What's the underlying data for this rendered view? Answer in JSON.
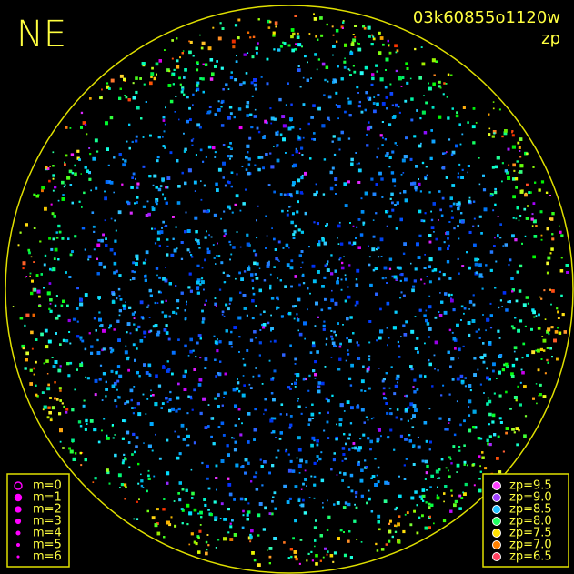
{
  "header": {
    "title": "NE",
    "frame_id": "03k60855o1120w",
    "label": "zp"
  },
  "legend_m": {
    "items": [
      {
        "label": "m=0"
      },
      {
        "label": "m=1"
      },
      {
        "label": "m=2"
      },
      {
        "label": "m=3"
      },
      {
        "label": "m=4"
      },
      {
        "label": "m=5"
      },
      {
        "label": "m=6"
      }
    ]
  },
  "legend_zp": {
    "items": [
      {
        "label": "zp=9.5",
        "color": "#ff40ff"
      },
      {
        "label": "zp=9.0",
        "color": "#a040ff"
      },
      {
        "label": "zp=8.5",
        "color": "#20c0ff"
      },
      {
        "label": "zp=8.0",
        "color": "#20ff60"
      },
      {
        "label": "zp=7.5",
        "color": "#ffe000"
      },
      {
        "label": "zp=7.0",
        "color": "#ff8000"
      },
      {
        "label": "zp=6.5",
        "color": "#ff4060"
      }
    ]
  }
}
